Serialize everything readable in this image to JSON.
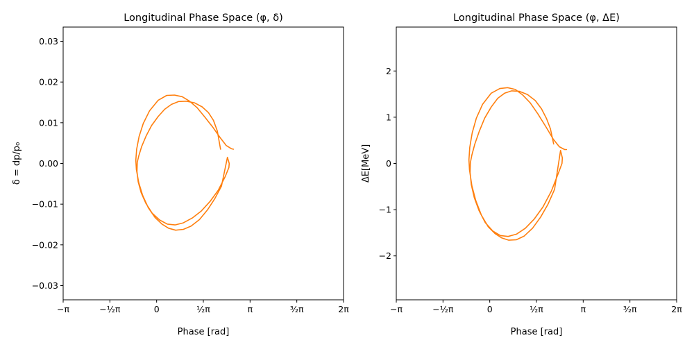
{
  "chart_data": [
    {
      "type": "line",
      "title": "Longitudinal Phase Space (φ, δ)",
      "xlabel": "Phase [rad]",
      "ylabel": "δ = dp/p₀",
      "xlim": [
        -3.1416,
        6.2832
      ],
      "ylim": [
        -0.0335,
        0.0335
      ],
      "x_ticks": [
        {
          "value": -3.1416,
          "label": "−π"
        },
        {
          "value": -1.5708,
          "label": "−½π"
        },
        {
          "value": 0,
          "label": "0"
        },
        {
          "value": 1.5708,
          "label": "½π"
        },
        {
          "value": 3.1416,
          "label": "π"
        },
        {
          "value": 4.7124,
          "label": "³⁄₂π"
        },
        {
          "value": 6.2832,
          "label": "2π"
        }
      ],
      "y_ticks": [
        {
          "value": -0.03,
          "label": "−0.03"
        },
        {
          "value": -0.02,
          "label": "−0.02"
        },
        {
          "value": -0.01,
          "label": "−0.01"
        },
        {
          "value": 0,
          "label": "0.00"
        },
        {
          "value": 0.01,
          "label": "0.01"
        },
        {
          "value": 0.02,
          "label": "0.02"
        },
        {
          "value": 0.03,
          "label": "0.03"
        }
      ],
      "grid": false,
      "series": [
        {
          "color": "#ff7f0e",
          "x": [
            2.15,
            2.04,
            1.91,
            1.74,
            1.53,
            1.27,
            1.0,
            0.74,
            0.5,
            0.27,
            0.05,
            -0.17,
            -0.35,
            -0.5,
            -0.6,
            -0.65,
            -0.66,
            -0.62,
            -0.52,
            -0.36,
            -0.15,
            0.1,
            0.36,
            0.62,
            0.9,
            1.2,
            1.5,
            1.79,
            2.07,
            2.3,
            2.43,
            2.44,
            2.38,
            2.18,
            1.96,
            1.71,
            1.44,
            1.16,
            0.9,
            0.64,
            0.4,
            0.18,
            -0.05,
            -0.28,
            -0.47,
            -0.6,
            -0.68,
            -0.7,
            -0.67,
            -0.59,
            -0.45,
            -0.24,
            0.05,
            0.34,
            0.6,
            0.86,
            1.11,
            1.36,
            1.62,
            1.9,
            2.13,
            2.34,
            2.52,
            2.58
          ],
          "y": [
            0.0035,
            0.008,
            0.0106,
            0.0125,
            0.0139,
            0.0149,
            0.0153,
            0.0152,
            0.0145,
            0.0133,
            0.0115,
            0.0093,
            0.0068,
            0.0042,
            0.0018,
            0.0003,
            -0.002,
            -0.0045,
            -0.0072,
            -0.0098,
            -0.0122,
            -0.0139,
            -0.0149,
            -0.0151,
            -0.0146,
            -0.0134,
            -0.0117,
            -0.0094,
            -0.0066,
            -0.0033,
            -0.001,
            0.0,
            0.0015,
            -0.0056,
            -0.0086,
            -0.0114,
            -0.0138,
            -0.0154,
            -0.0162,
            -0.0164,
            -0.0159,
            -0.0149,
            -0.0133,
            -0.0109,
            -0.0078,
            -0.0047,
            -0.0015,
            0.0008,
            0.0035,
            0.0066,
            0.0098,
            0.0129,
            0.0155,
            0.0167,
            0.0168,
            0.0164,
            0.0153,
            0.0137,
            0.0114,
            0.0088,
            0.0064,
            0.0044,
            0.0036,
            0.0035
          ]
        }
      ]
    },
    {
      "type": "line",
      "title": "Longitudinal Phase Space (φ, ΔE)",
      "xlabel": "Phase [rad]",
      "ylabel": "ΔE[MeV]",
      "xlim": [
        -3.1416,
        6.2832
      ],
      "ylim": [
        -2.95,
        2.95
      ],
      "x_ticks": [
        {
          "value": -3.1416,
          "label": "−π"
        },
        {
          "value": -1.5708,
          "label": "−½π"
        },
        {
          "value": 0,
          "label": "0"
        },
        {
          "value": 1.5708,
          "label": "½π"
        },
        {
          "value": 3.1416,
          "label": "π"
        },
        {
          "value": 4.7124,
          "label": "³⁄₂π"
        },
        {
          "value": 6.2832,
          "label": "2π"
        }
      ],
      "y_ticks": [
        {
          "value": -2,
          "label": "−2"
        },
        {
          "value": -1,
          "label": "−1"
        },
        {
          "value": 0,
          "label": "0"
        },
        {
          "value": 1,
          "label": "1"
        },
        {
          "value": 2,
          "label": "2"
        }
      ],
      "grid": false,
      "series": [
        {
          "color": "#ff7f0e",
          "x": [
            2.15,
            2.04,
            1.91,
            1.74,
            1.53,
            1.27,
            1.0,
            0.74,
            0.5,
            0.27,
            0.05,
            -0.17,
            -0.35,
            -0.5,
            -0.6,
            -0.65,
            -0.66,
            -0.62,
            -0.52,
            -0.36,
            -0.15,
            0.1,
            0.36,
            0.62,
            0.9,
            1.2,
            1.5,
            1.79,
            2.07,
            2.3,
            2.43,
            2.44,
            2.38,
            2.18,
            1.96,
            1.71,
            1.44,
            1.16,
            0.9,
            0.64,
            0.4,
            0.18,
            -0.05,
            -0.28,
            -0.47,
            -0.6,
            -0.68,
            -0.7,
            -0.67,
            -0.59,
            -0.45,
            -0.24,
            0.05,
            0.34,
            0.6,
            0.86,
            1.11,
            1.36,
            1.62,
            1.9,
            2.13,
            2.34,
            2.52,
            2.58
          ],
          "y": [
            0.42,
            0.75,
            0.97,
            1.18,
            1.36,
            1.49,
            1.56,
            1.57,
            1.52,
            1.41,
            1.22,
            0.98,
            0.7,
            0.42,
            0.18,
            0.02,
            -0.2,
            -0.46,
            -0.74,
            -1.02,
            -1.28,
            -1.46,
            -1.56,
            -1.58,
            -1.53,
            -1.4,
            -1.2,
            -0.94,
            -0.6,
            -0.22,
            0.0,
            0.12,
            0.28,
            -0.56,
            -0.88,
            -1.16,
            -1.4,
            -1.57,
            -1.65,
            -1.66,
            -1.61,
            -1.52,
            -1.37,
            -1.12,
            -0.8,
            -0.48,
            -0.14,
            0.08,
            0.35,
            0.66,
            0.98,
            1.28,
            1.52,
            1.62,
            1.64,
            1.6,
            1.48,
            1.31,
            1.07,
            0.78,
            0.53,
            0.36,
            0.3,
            0.3
          ]
        }
      ]
    }
  ]
}
